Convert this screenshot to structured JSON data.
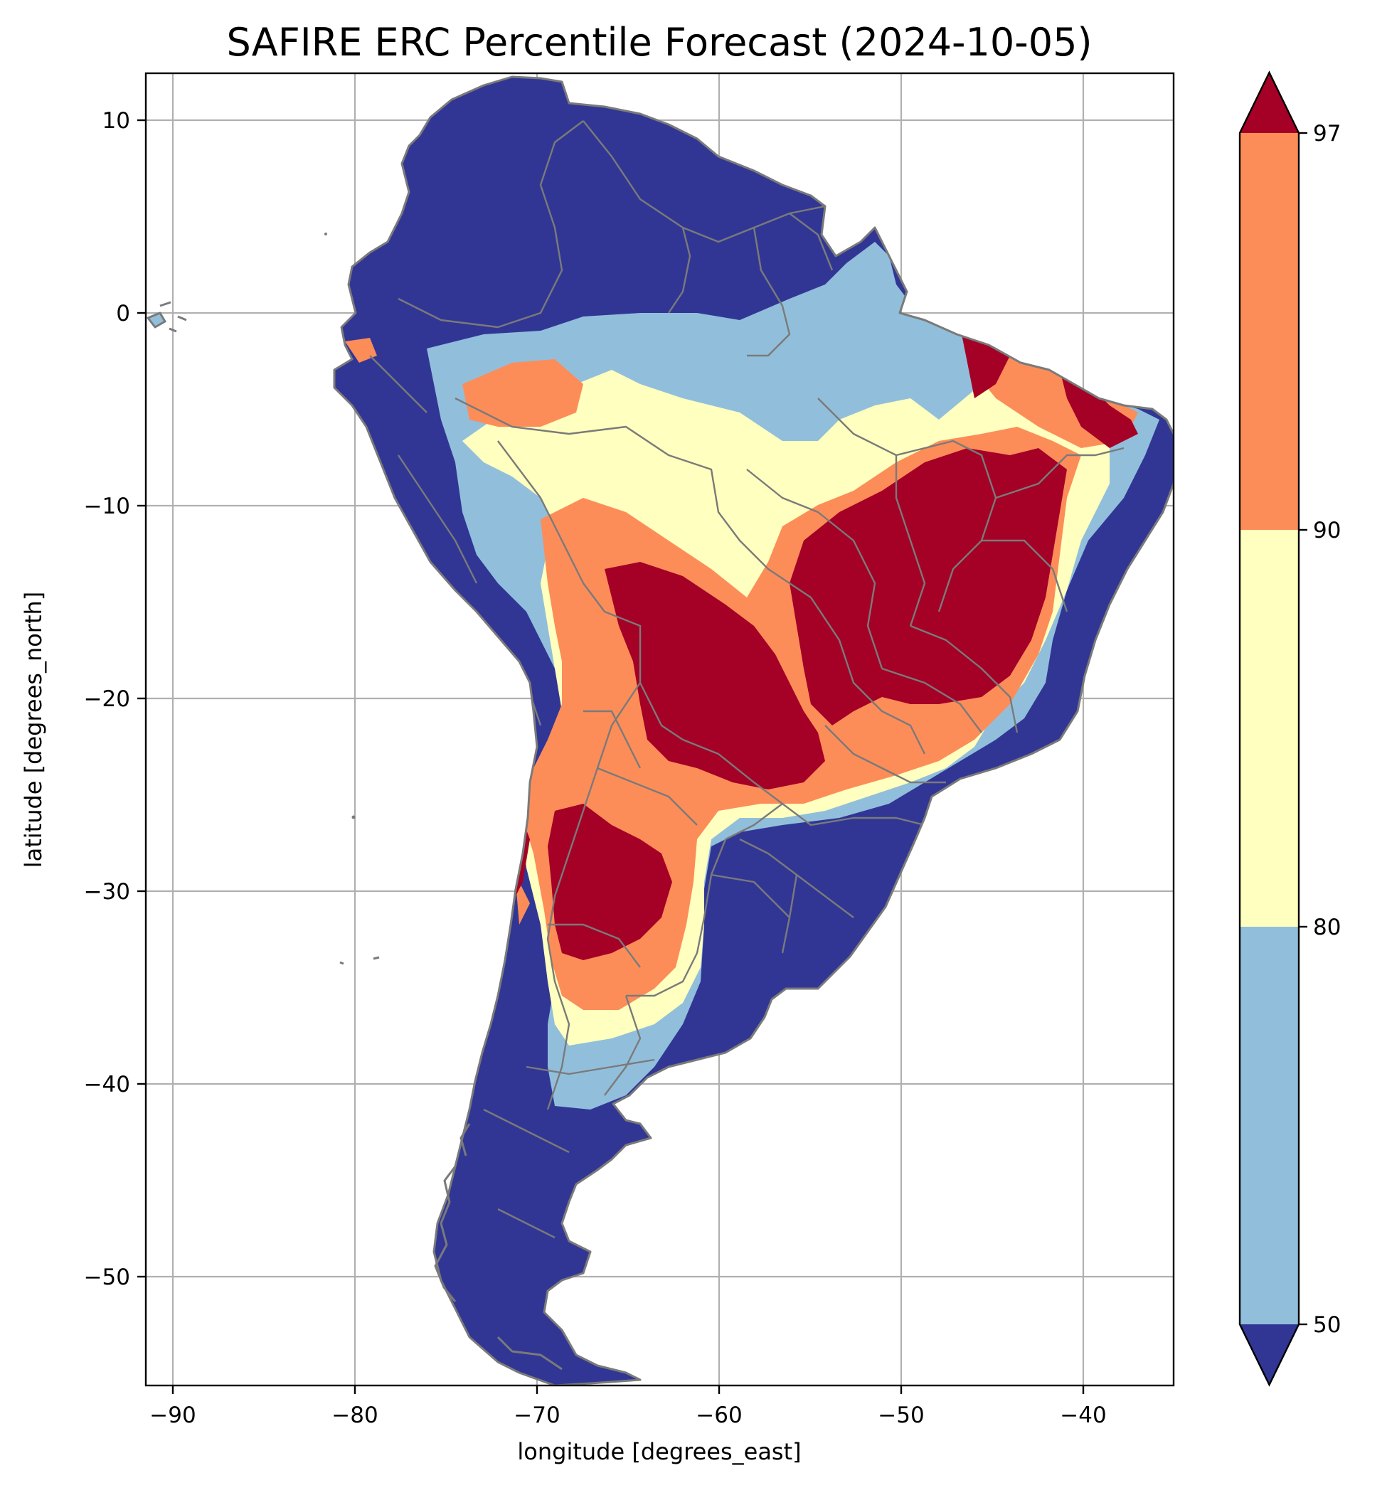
{
  "title": "SAFIRE ERC Percentile Forecast (2024-10-05)",
  "xlabel": "longitude [degrees_east]",
  "ylabel": "latitude [degrees_north]",
  "x_ticks": [
    "−90",
    "−80",
    "−70",
    "−60",
    "−50",
    "−40"
  ],
  "y_ticks": [
    "10",
    "0",
    "−10",
    "−20",
    "−30",
    "−40",
    "−50"
  ],
  "colorbar": {
    "ticks": [
      "50",
      "80",
      "90",
      "97"
    ],
    "extend": "both",
    "classes": [
      {
        "range": "<50",
        "color": "#313695"
      },
      {
        "range": "50-80",
        "color": "#91bfdb"
      },
      {
        "range": "80-90",
        "color": "#ffffbf"
      },
      {
        "range": "90-97",
        "color": "#fc8d59"
      },
      {
        "range": ">97",
        "color": "#a50026"
      }
    ]
  },
  "colors": {
    "below_50": "#313695",
    "p50_80": "#91bfdb",
    "p80_90": "#ffffbf",
    "p90_97": "#fc8d59",
    "above_97": "#a50026",
    "coastline": "#7a7a7a",
    "grid": "#b0b0b0"
  }
}
